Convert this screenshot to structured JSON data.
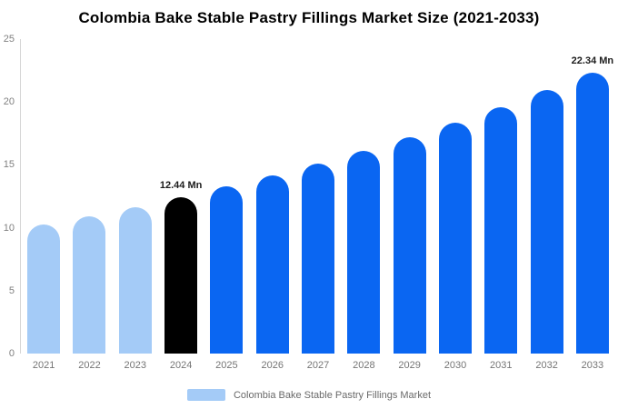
{
  "chart_data": {
    "type": "bar",
    "title": "Colombia Bake Stable Pastry Fillings Market Size (2021-2033)",
    "unit": "Mn",
    "categories": [
      "2021",
      "2022",
      "2023",
      "2024",
      "2025",
      "2026",
      "2027",
      "2028",
      "2029",
      "2030",
      "2031",
      "2032",
      "2033"
    ],
    "values": [
      10.23,
      10.92,
      11.66,
      12.44,
      13.28,
      14.17,
      15.12,
      16.14,
      17.22,
      18.38,
      19.61,
      20.93,
      22.34
    ],
    "ylim": [
      0,
      25
    ],
    "yticks": [
      0,
      5,
      10,
      15,
      20,
      25
    ],
    "grid": false,
    "xlabel": "",
    "ylabel": "",
    "colors": {
      "past": "#a4cbf7",
      "current": "#000000",
      "forecast": "#0a66f2"
    },
    "color_map": [
      "past",
      "past",
      "past",
      "current",
      "forecast",
      "forecast",
      "forecast",
      "forecast",
      "forecast",
      "forecast",
      "forecast",
      "forecast",
      "forecast"
    ],
    "annotations": [
      {
        "category": "2024",
        "text": "12.44 Mn"
      },
      {
        "category": "2033",
        "text": "22.34 Mn"
      }
    ],
    "legend": {
      "position": "bottom",
      "label": "Colombia Bake Stable Pastry Fillings Market",
      "swatch_color": "#a4cbf7"
    }
  }
}
